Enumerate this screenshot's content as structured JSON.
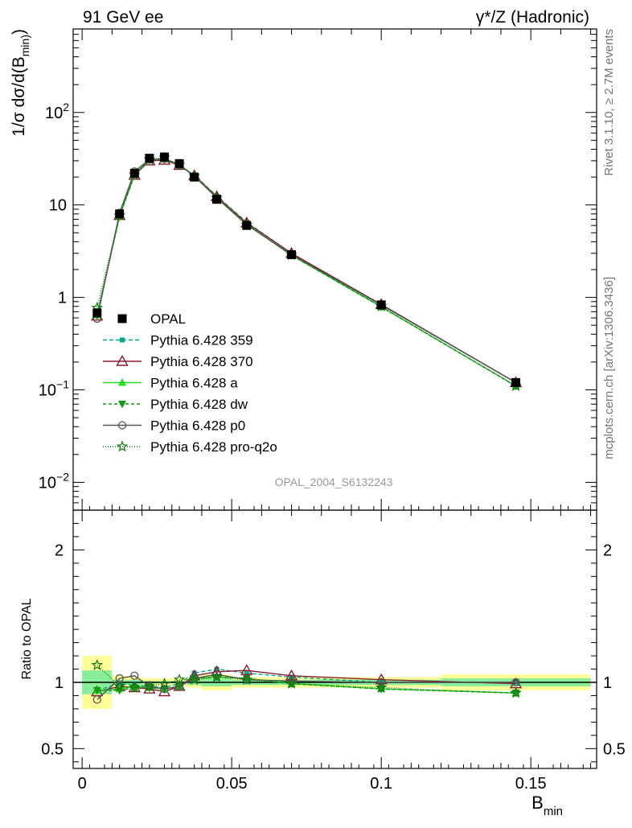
{
  "header": {
    "left": "91 GeV ee",
    "right": "γ*/Z (Hadronic)"
  },
  "side_labels": {
    "top": "Rivet 3.1.10, ≥ 2.7M events",
    "bottom": "mcplots.cern.ch [arXiv:1306.3436]"
  },
  "watermark": "OPAL_2004_S6132243",
  "chart_data": [
    {
      "type": "line",
      "panel": "main",
      "ylabel": "1/σ dσ/d(B_min)",
      "yscale": "log",
      "ylim": [
        0.005,
        800
      ],
      "xlim": [
        -0.003,
        0.172
      ],
      "yticks": [
        {
          "value": 0.01,
          "base": "10",
          "exp": "−2"
        },
        {
          "value": 0.1,
          "base": "10",
          "exp": "−1"
        },
        {
          "value": 1,
          "base": "1",
          "exp": ""
        },
        {
          "value": 10,
          "base": "10",
          "exp": ""
        },
        {
          "value": 100,
          "base": "10",
          "exp": "2"
        }
      ],
      "x": [
        0.005,
        0.0125,
        0.0175,
        0.0225,
        0.0275,
        0.0325,
        0.0375,
        0.045,
        0.055,
        0.07,
        0.1,
        0.145
      ],
      "series": [
        {
          "name": "OPAL",
          "color": "#000000",
          "marker": "square",
          "dash": "none",
          "values": [
            0.68,
            8.0,
            22.0,
            32.0,
            33.0,
            28.0,
            20.0,
            11.5,
            6.0,
            2.9,
            0.83,
            0.12
          ]
        },
        {
          "name": "Pythia 6.428 359",
          "color": "#00aa88",
          "marker": "smallsquare",
          "dash": "5,3",
          "values": [
            0.65,
            7.6,
            21.5,
            31.0,
            31.5,
            27.0,
            21.0,
            12.5,
            6.5,
            3.0,
            0.83,
            0.12
          ]
        },
        {
          "name": "Pythia 6.428 370",
          "color": "#8b1a2e",
          "marker": "triangle-open",
          "dash": "none",
          "values": [
            0.63,
            7.7,
            21.0,
            30.0,
            30.5,
            26.8,
            20.8,
            12.3,
            6.4,
            3.0,
            0.84,
            0.12
          ]
        },
        {
          "name": "Pythia 6.428 a",
          "color": "#22dd22",
          "marker": "triangle",
          "dash": "none",
          "values": [
            0.64,
            7.6,
            21.3,
            30.8,
            31.5,
            27.2,
            20.6,
            12.0,
            6.2,
            2.85,
            0.79,
            0.11
          ]
        },
        {
          "name": "Pythia 6.428 dw",
          "color": "#119911",
          "marker": "triangle-down",
          "dash": "4,3",
          "values": [
            0.64,
            7.5,
            21.2,
            30.6,
            31.3,
            27.1,
            20.5,
            11.9,
            6.2,
            2.85,
            0.79,
            0.11
          ]
        },
        {
          "name": "Pythia 6.428 p0",
          "color": "#555555",
          "marker": "circle-open",
          "dash": "none",
          "values": [
            0.59,
            8.2,
            23.0,
            31.0,
            31.5,
            27.0,
            20.5,
            11.9,
            6.1,
            2.9,
            0.83,
            0.12
          ]
        },
        {
          "name": "Pythia 6.428 pro-q2o",
          "color": "#117711",
          "marker": "star",
          "dash": "1,2",
          "values": [
            0.77,
            7.7,
            21.2,
            31.0,
            32.5,
            27.3,
            20.4,
            11.9,
            6.1,
            2.88,
            0.8,
            0.11
          ]
        }
      ]
    },
    {
      "type": "line",
      "panel": "ratio",
      "ylabel": "Ratio to OPAL",
      "xlabel": "B_min",
      "ylim": [
        0.35,
        2.3
      ],
      "xlim": [
        -0.003,
        0.172
      ],
      "yticks": [
        0.5,
        1,
        2
      ],
      "xticks": [
        {
          "value": 0,
          "label": "0"
        },
        {
          "value": 0.05,
          "label": "0.05"
        },
        {
          "value": 0.1,
          "label": "0.1"
        },
        {
          "value": 0.15,
          "label": "0.15"
        }
      ],
      "bands": [
        {
          "x1": 0.0,
          "x2": 0.01,
          "stat": [
            0.91,
            1.09
          ],
          "total": [
            0.8,
            1.2
          ]
        },
        {
          "x1": 0.01,
          "x2": 0.015,
          "stat": [
            0.98,
            1.02
          ],
          "total": [
            0.95,
            1.05
          ]
        },
        {
          "x1": 0.015,
          "x2": 0.02,
          "stat": [
            0.98,
            1.02
          ],
          "total": [
            0.96,
            1.04
          ]
        },
        {
          "x1": 0.02,
          "x2": 0.025,
          "stat": [
            0.99,
            1.01
          ],
          "total": [
            0.97,
            1.03
          ]
        },
        {
          "x1": 0.025,
          "x2": 0.03,
          "stat": [
            0.99,
            1.01
          ],
          "total": [
            0.97,
            1.03
          ]
        },
        {
          "x1": 0.03,
          "x2": 0.035,
          "stat": [
            0.99,
            1.01
          ],
          "total": [
            0.97,
            1.03
          ]
        },
        {
          "x1": 0.035,
          "x2": 0.04,
          "stat": [
            0.98,
            1.02
          ],
          "total": [
            0.96,
            1.04
          ]
        },
        {
          "x1": 0.04,
          "x2": 0.05,
          "stat": [
            0.97,
            1.03
          ],
          "total": [
            0.94,
            1.06
          ]
        },
        {
          "x1": 0.05,
          "x2": 0.06,
          "stat": [
            0.98,
            1.02
          ],
          "total": [
            0.96,
            1.04
          ]
        },
        {
          "x1": 0.06,
          "x2": 0.08,
          "stat": [
            0.98,
            1.02
          ],
          "total": [
            0.96,
            1.04
          ]
        },
        {
          "x1": 0.08,
          "x2": 0.12,
          "stat": [
            0.98,
            1.02
          ],
          "total": [
            0.96,
            1.04
          ]
        },
        {
          "x1": 0.12,
          "x2": 0.17,
          "stat": [
            0.97,
            1.03
          ],
          "total": [
            0.94,
            1.06
          ]
        }
      ],
      "series": [
        {
          "name": "Pythia 6.428 359",
          "color": "#00aa88",
          "marker": "smallsquare",
          "dash": "5,3",
          "values": [
            0.94,
            0.99,
            0.98,
            0.97,
            0.96,
            0.99,
            1.07,
            1.1,
            1.07,
            1.04,
            1.0,
            1.0
          ]
        },
        {
          "name": "Pythia 6.428 370",
          "color": "#8b1a2e",
          "marker": "triangle-open",
          "dash": "none",
          "values": [
            0.93,
            0.97,
            0.96,
            0.95,
            0.93,
            0.97,
            1.05,
            1.08,
            1.09,
            1.05,
            1.02,
            0.99
          ]
        },
        {
          "name": "Pythia 6.428 a",
          "color": "#22dd22",
          "marker": "triangle",
          "dash": "none",
          "values": [
            0.94,
            0.95,
            0.97,
            0.96,
            0.95,
            0.97,
            1.03,
            1.04,
            1.03,
            0.99,
            0.95,
            0.92
          ]
        },
        {
          "name": "Pythia 6.428 dw",
          "color": "#119911",
          "marker": "triangle-down",
          "dash": "4,3",
          "values": [
            0.94,
            0.94,
            0.96,
            0.96,
            0.95,
            0.97,
            1.03,
            1.04,
            1.03,
            0.99,
            0.95,
            0.92
          ]
        },
        {
          "name": "Pythia 6.428 p0",
          "color": "#555555",
          "marker": "circle-open",
          "dash": "none",
          "values": [
            0.87,
            1.03,
            1.05,
            0.97,
            0.95,
            0.97,
            1.03,
            1.06,
            1.02,
            1.01,
            1.0,
            1.0
          ]
        },
        {
          "name": "Pythia 6.428 pro-q2o",
          "color": "#117711",
          "marker": "star",
          "dash": "1,2",
          "values": [
            1.13,
            0.97,
            0.96,
            0.97,
            0.99,
            1.02,
            1.02,
            1.04,
            1.02,
            0.99,
            0.96,
            0.92
          ]
        }
      ]
    }
  ]
}
